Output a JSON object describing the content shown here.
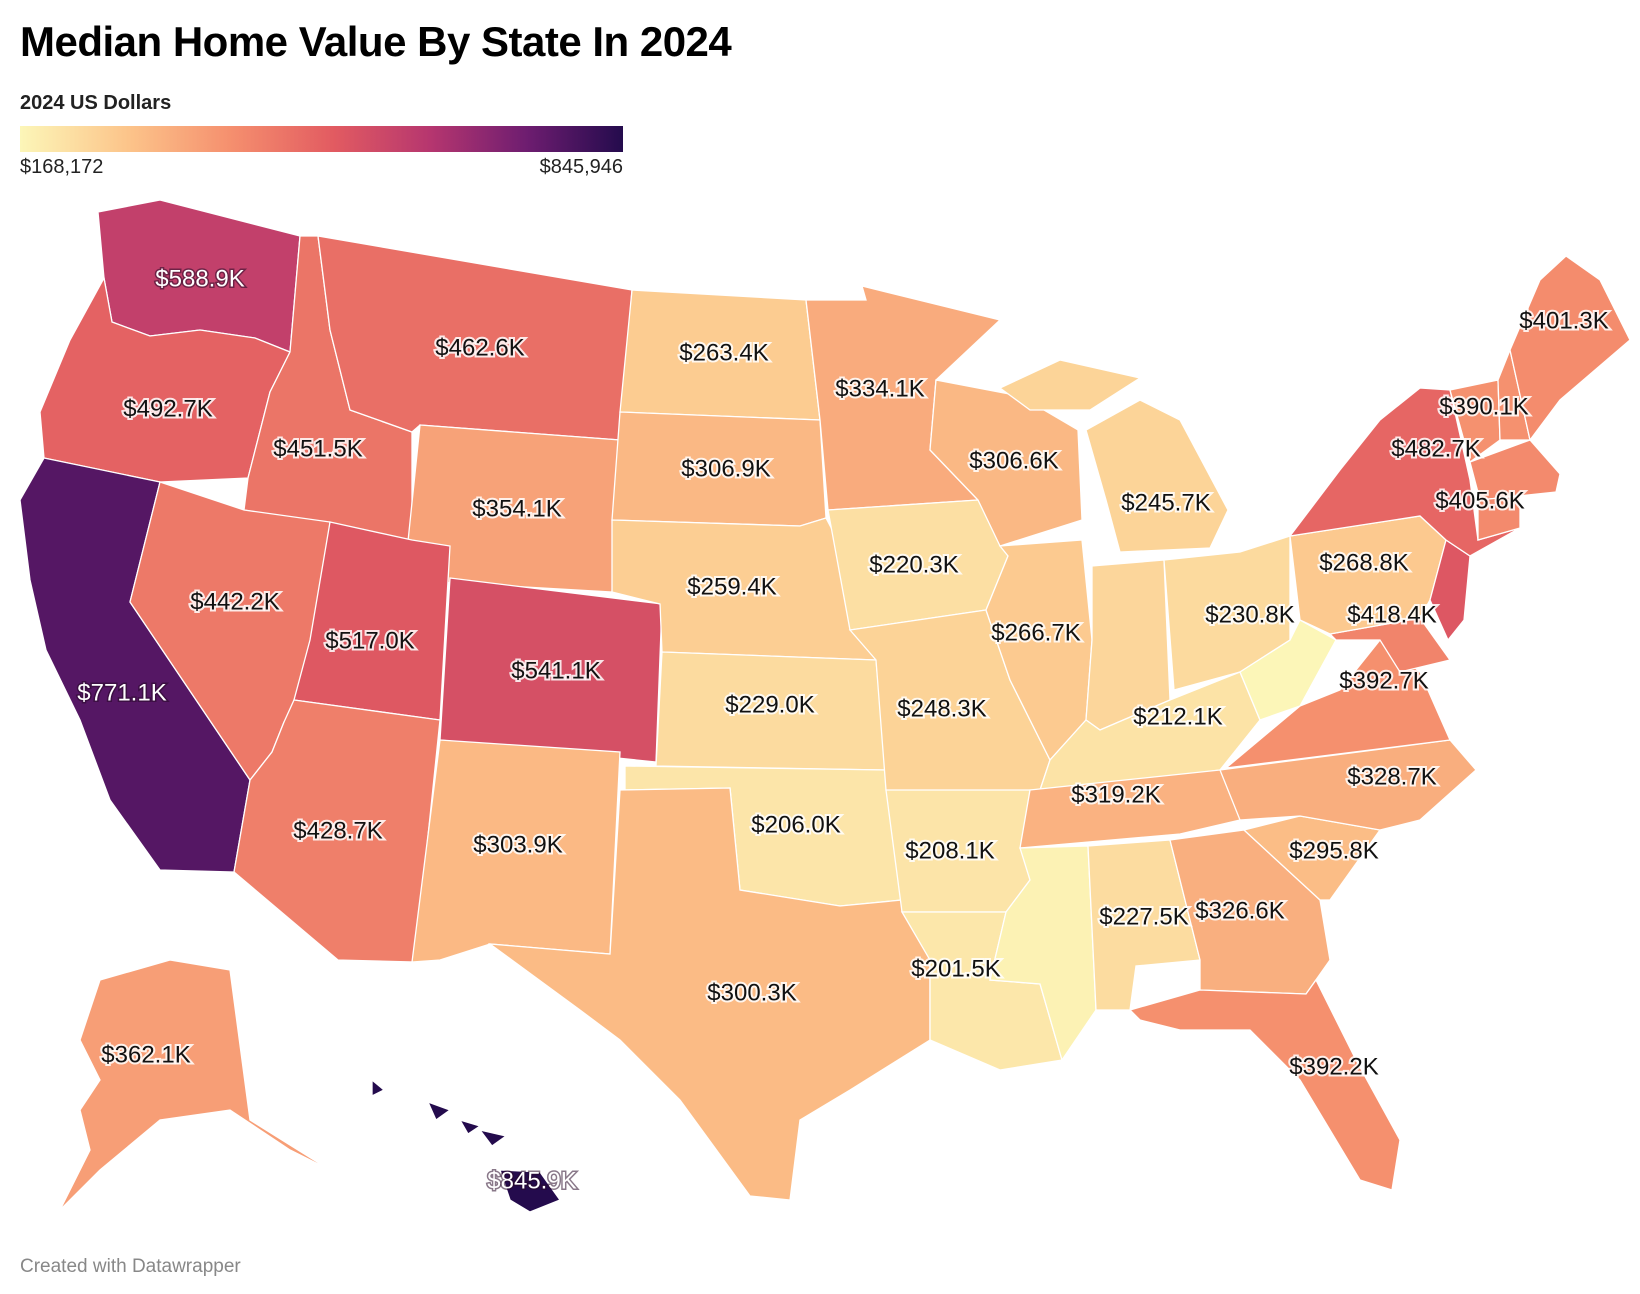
{
  "title": "Median Home Value By State In 2024",
  "subtitle": "2024 US Dollars",
  "legend": {
    "min_label": "$168,172",
    "max_label": "$845,946",
    "min_value": 168172,
    "max_value": 845946,
    "colors": [
      "#fcf6b8",
      "#fcc48a",
      "#f58f6e",
      "#e25b61",
      "#b6366f",
      "#6e1d70",
      "#240b4d"
    ]
  },
  "footer": "Created with Datawrapper",
  "chart_data": {
    "type": "choropleth",
    "title": "Median Home Value By State In 2024",
    "subtitle": "2024 US Dollars",
    "states": [
      {
        "state": "WA",
        "value": 588900,
        "label": "$588.9K"
      },
      {
        "state": "OR",
        "value": 492700,
        "label": "$492.7K"
      },
      {
        "state": "CA",
        "value": 771100,
        "label": "$771.1K"
      },
      {
        "state": "ID",
        "value": 451500,
        "label": "$451.5K"
      },
      {
        "state": "NV",
        "value": 442200,
        "label": "$442.2K"
      },
      {
        "state": "MT",
        "value": 462600,
        "label": "$462.6K"
      },
      {
        "state": "WY",
        "value": 354100,
        "label": "$354.1K"
      },
      {
        "state": "UT",
        "value": 517000,
        "label": "$517.0K"
      },
      {
        "state": "CO",
        "value": 541100,
        "label": "$541.1K"
      },
      {
        "state": "AZ",
        "value": 428700,
        "label": "$428.7K"
      },
      {
        "state": "NM",
        "value": 303900,
        "label": "$303.9K"
      },
      {
        "state": "ND",
        "value": 263400,
        "label": "$263.4K"
      },
      {
        "state": "SD",
        "value": 306900,
        "label": "$306.9K"
      },
      {
        "state": "NE",
        "value": 259400,
        "label": "$259.4K"
      },
      {
        "state": "KS",
        "value": 229000,
        "label": "$229.0K"
      },
      {
        "state": "OK",
        "value": 206000,
        "label": "$206.0K"
      },
      {
        "state": "TX",
        "value": 300300,
        "label": "$300.3K"
      },
      {
        "state": "MN",
        "value": 334100,
        "label": "$334.1K"
      },
      {
        "state": "IA",
        "value": 220300,
        "label": "$220.3K"
      },
      {
        "state": "MO",
        "value": 248300,
        "label": "$248.3K"
      },
      {
        "state": "AR",
        "value": 208100,
        "label": "$208.1K"
      },
      {
        "state": "LA",
        "value": 201500,
        "label": "$201.5K"
      },
      {
        "state": "WI",
        "value": 306600,
        "label": "$306.6K"
      },
      {
        "state": "IL",
        "value": 266700,
        "label": "$266.7K"
      },
      {
        "state": "MI",
        "value": 245700,
        "label": "$245.7K"
      },
      {
        "state": "IN",
        "value": null,
        "label": ""
      },
      {
        "state": "OH",
        "value": 230800,
        "label": "$230.8K"
      },
      {
        "state": "KY",
        "value": 212100,
        "label": "$212.1K"
      },
      {
        "state": "TN",
        "value": 319200,
        "label": "$319.2K"
      },
      {
        "state": "MS",
        "value": null,
        "label": ""
      },
      {
        "state": "AL",
        "value": 227500,
        "label": "$227.5K"
      },
      {
        "state": "GA",
        "value": 326600,
        "label": "$326.6K"
      },
      {
        "state": "FL",
        "value": 392200,
        "label": "$392.2K"
      },
      {
        "state": "SC",
        "value": 295800,
        "label": "$295.8K"
      },
      {
        "state": "NC",
        "value": 328700,
        "label": "$328.7K"
      },
      {
        "state": "VA",
        "value": 392700,
        "label": "$392.7K"
      },
      {
        "state": "WV",
        "value": null,
        "label": ""
      },
      {
        "state": "MD",
        "value": 418400,
        "label": "$418.4K"
      },
      {
        "state": "PA",
        "value": 268800,
        "label": "$268.8K"
      },
      {
        "state": "NY",
        "value": 482700,
        "label": "$482.7K"
      },
      {
        "state": "NJ",
        "value": null,
        "label": ""
      },
      {
        "state": "MA",
        "value": 405600,
        "label": "$405.6K"
      },
      {
        "state": "VT",
        "value": 390100,
        "label": "$390.1K"
      },
      {
        "state": "ME",
        "value": 401300,
        "label": "$401.3K"
      },
      {
        "state": "AK",
        "value": 362100,
        "label": "$362.1K"
      },
      {
        "state": "HI",
        "value": 845900,
        "label": "$845.9K"
      }
    ]
  }
}
